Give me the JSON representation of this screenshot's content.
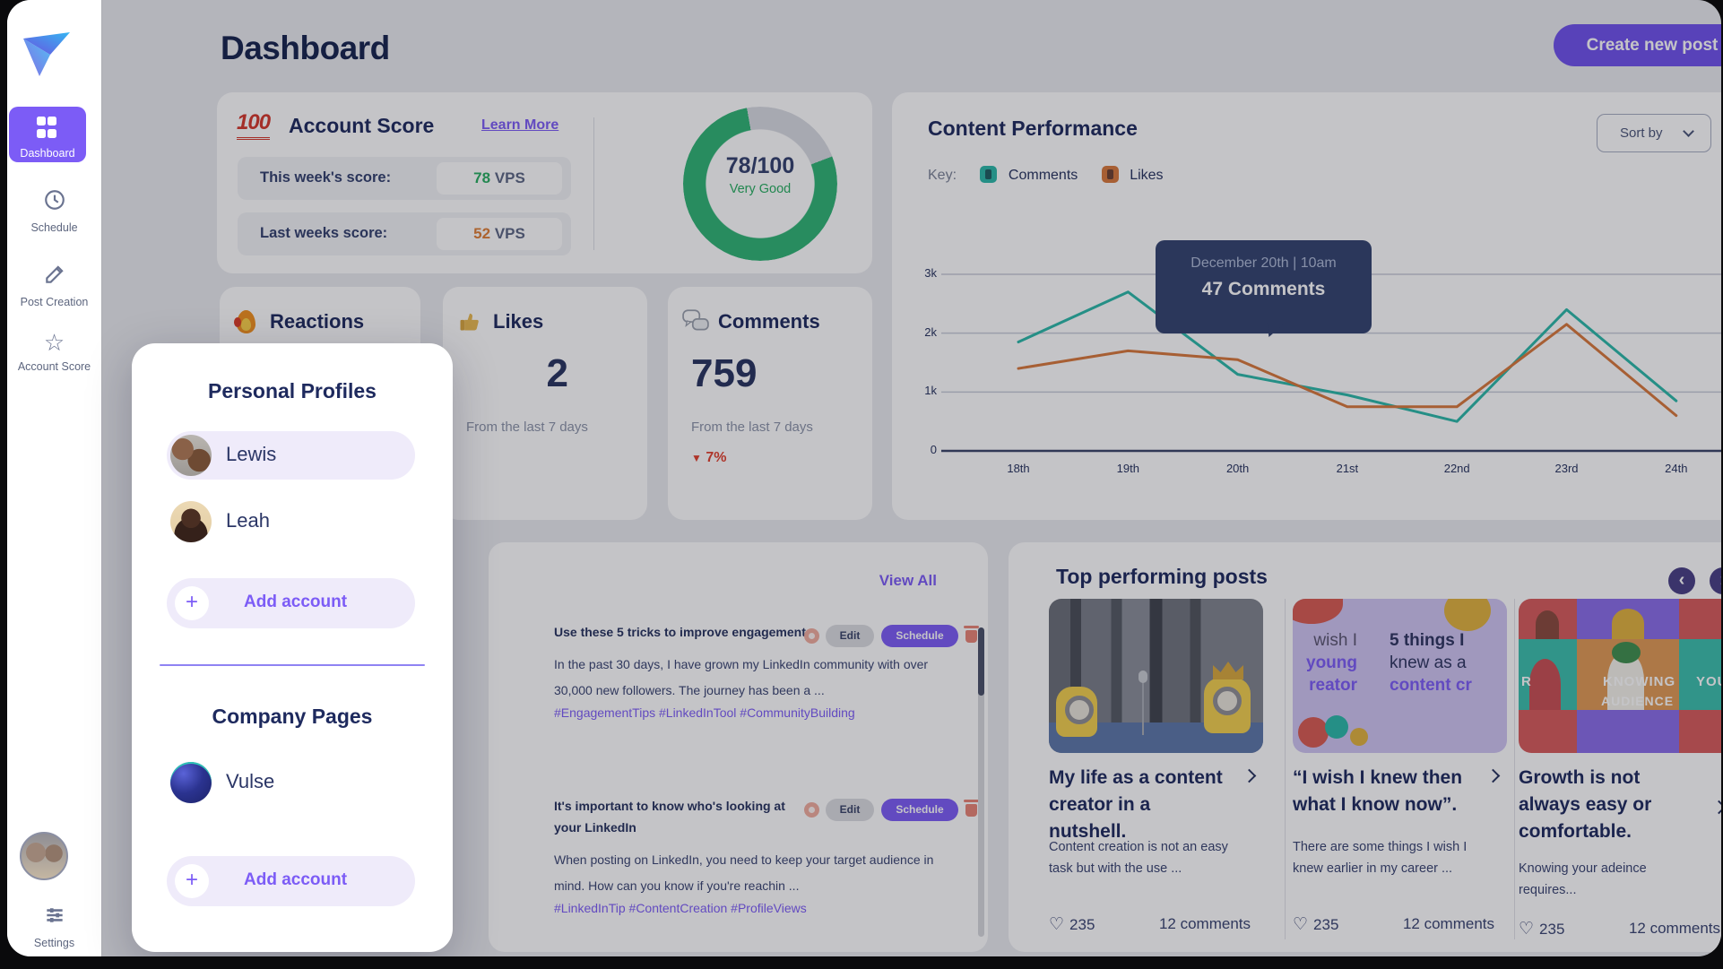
{
  "sidebar": {
    "items": [
      {
        "label": "Dashboard",
        "active": true
      },
      {
        "label": "Schedule"
      },
      {
        "label": "Post Creation"
      },
      {
        "label": "Account Score"
      }
    ],
    "settings_label": "Settings"
  },
  "header": {
    "title": "Dashboard",
    "create_post": "Create new post"
  },
  "account_score": {
    "badge": "100",
    "title": "Account Score",
    "learn_more": "Learn More",
    "rows": [
      {
        "label": "This week's score:",
        "value": "78",
        "unit": "VPS"
      },
      {
        "label": "Last weeks score:",
        "value": "52",
        "unit": "VPS"
      }
    ],
    "gauge": {
      "score": "78/100",
      "caption": "Very Good",
      "percent": 78
    }
  },
  "stat_cards": {
    "reactions": {
      "title": "Reactions"
    },
    "likes": {
      "title": "Likes",
      "value": "2",
      "period": "From the last 7 days"
    },
    "comments": {
      "title": "Comments",
      "value": "759",
      "period": "From the last 7 days",
      "delta": "7%"
    }
  },
  "performance": {
    "title": "Content Performance",
    "sort_by": "Sort by",
    "key_label": "Key:",
    "legend": [
      {
        "label": "Comments",
        "color": "#2BB8A8"
      },
      {
        "label": "Likes",
        "color": "#D9793B"
      }
    ],
    "tooltip": {
      "title": "December 20th | 10am",
      "value": "47 Comments"
    },
    "chart_data": {
      "type": "line",
      "x": [
        "18th",
        "19th",
        "20th",
        "21st",
        "22nd",
        "23rd",
        "24th"
      ],
      "series": [
        {
          "name": "Comments",
          "color": "#2BB8A8",
          "values": [
            1850,
            2700,
            1300,
            950,
            500,
            2400,
            850
          ]
        },
        {
          "name": "Likes",
          "color": "#D9793B",
          "values": [
            1400,
            1700,
            1550,
            750,
            750,
            2150,
            600
          ]
        }
      ],
      "ylim": [
        0,
        3000
      ],
      "yticks": [
        "3k",
        "2k",
        "1k",
        "0"
      ],
      "grid": true,
      "legend_position": "top",
      "annotation": "47 Comments at December 20th 10am"
    }
  },
  "posts": {
    "view_all": "View All",
    "edit_label": "Edit",
    "schedule_label": "Schedule",
    "items": [
      {
        "title": "Use these 5 tricks to improve engagement",
        "excerpt": "In the past 30 days, I have grown my LinkedIn community with over 30,000 new followers. The journey has been a ...",
        "hashtags": "#EngagementTips #LinkedInTool #CommunityBuilding"
      },
      {
        "title": "It's important to know who's looking at your LinkedIn",
        "excerpt": "When posting on LinkedIn, you need to keep your target audience in mind. How can you know if you're reachin ...",
        "hashtags": "#LinkedInTip #ContentCreation #ProfileViews"
      }
    ]
  },
  "top_posts": {
    "title": "Top performing posts",
    "cards": [
      {
        "title": "My life as a content creator in a nutshell.",
        "excerpt": "Content creation is not an easy task but with the use ...",
        "likes": "235",
        "comments": "12 comments"
      },
      {
        "title": "“I wish I knew then what I know now”.",
        "excerpt": "There are some things I wish I knew earlier in my career ...",
        "likes": "235",
        "comments": "12 comments",
        "image_text": {
          "left": [
            "wish I",
            "young",
            "reator"
          ],
          "right": [
            "5 things I",
            "knew as a",
            "content cr"
          ]
        }
      },
      {
        "title": "Growth is not always easy or comfortable.",
        "excerpt": "Knowing your adeince requires...",
        "likes": "235",
        "comments": "12 comments",
        "image_text": {
          "words": [
            "R",
            "KNOWING",
            "YOUR",
            "AUDIENCE"
          ]
        }
      }
    ]
  },
  "profile_popup": {
    "personal_title": "Personal Profiles",
    "profiles": [
      {
        "name": "Lewis"
      },
      {
        "name": "Leah"
      }
    ],
    "add_account": "Add account",
    "company_title": "Company Pages",
    "companies": [
      {
        "name": "Vulse"
      }
    ]
  },
  "icons": {
    "heart": "♡",
    "plus": "+",
    "back": "‹",
    "forward": "›",
    "delta_down": "▼"
  },
  "colors": {
    "accent": "#7C5CF6",
    "navy": "#1E2A5E",
    "green": "#27AE60",
    "score_orange": "#DF7E35",
    "red": "#E2402E",
    "teal_line": "#2BB8A8",
    "orange_line": "#D9793B",
    "tooltip_bg": "#33436F",
    "gauge_green": "#2FB575"
  }
}
